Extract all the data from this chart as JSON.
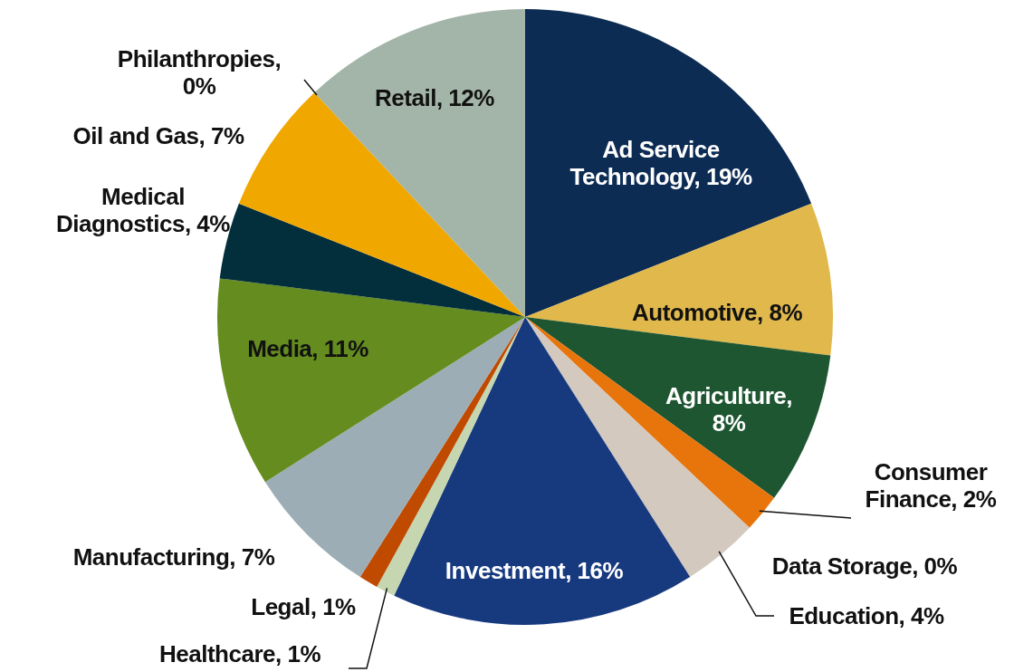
{
  "chart_data": {
    "type": "pie",
    "categories": [
      "Ad Service Technology",
      "Automotive",
      "Agriculture",
      "Consumer Finance",
      "Data Storage",
      "Education",
      "Investment",
      "Healthcare",
      "Legal",
      "Manufacturing",
      "Media",
      "Medical Diagnostics",
      "Oil and Gas",
      "Philanthropies",
      "Retail"
    ],
    "values": [
      19,
      8,
      8,
      2,
      0,
      4,
      16,
      1,
      1,
      7,
      11,
      4,
      7,
      0,
      12
    ],
    "colors": [
      "#0d2c54",
      "#e0b84c",
      "#1e5631",
      "#e8740c",
      "#5b3f7a",
      "#d3c9bf",
      "#173a7f",
      "#c5d6b0",
      "#c04a00",
      "#9cadb5",
      "#648c1e",
      "#032e3c",
      "#f0a800",
      "#8b2332",
      "#a3b5a8"
    ],
    "value_labels": [
      ", 19%",
      ", 8%",
      ", 8%",
      ", 2%",
      ", 0%",
      ", 4%",
      ", 16%",
      ", 1%",
      ", 1%",
      ", 7%",
      ", 11%",
      ", 4%",
      ", 7%",
      ", 0%",
      ", 12%"
    ],
    "legend": false
  }
}
